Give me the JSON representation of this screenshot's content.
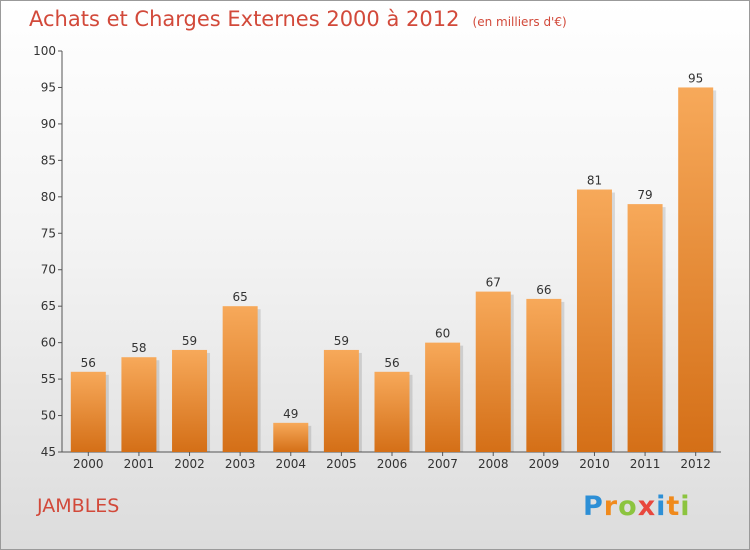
{
  "title": "Achats et Charges Externes 2000 à 2012",
  "unit": "(en milliers d'€)",
  "commune": "JAMBLES",
  "logo": {
    "text": "Proxiti",
    "letters": [
      {
        "ch": "P",
        "color": "#2d8fd6"
      },
      {
        "ch": "r",
        "color": "#f08a1c"
      },
      {
        "ch": "o",
        "color": "#8cc43f"
      },
      {
        "ch": "x",
        "color": "#e8473d"
      },
      {
        "ch": "i",
        "color": "#2d8fd6"
      },
      {
        "ch": "t",
        "color": "#f08a1c"
      },
      {
        "ch": "i",
        "color": "#8cc43f"
      }
    ]
  },
  "colors": {
    "title": "#d2493a",
    "bar_top": "#f7a95a",
    "bar_bottom": "#d46f17"
  },
  "chart_data": {
    "type": "bar",
    "title": "Achats et Charges Externes 2000 à 2012",
    "categories": [
      "2000",
      "2001",
      "2002",
      "2003",
      "2004",
      "2005",
      "2006",
      "2007",
      "2008",
      "2009",
      "2010",
      "2011",
      "2012"
    ],
    "values": [
      56,
      58,
      59,
      65,
      49,
      59,
      56,
      60,
      67,
      66,
      81,
      79,
      95
    ],
    "ylim": [
      45,
      100
    ],
    "yticks": [
      45,
      50,
      55,
      60,
      65,
      70,
      75,
      80,
      85,
      90,
      95,
      100
    ],
    "xlabel": "",
    "ylabel": "",
    "grid": false,
    "legend": "none"
  }
}
